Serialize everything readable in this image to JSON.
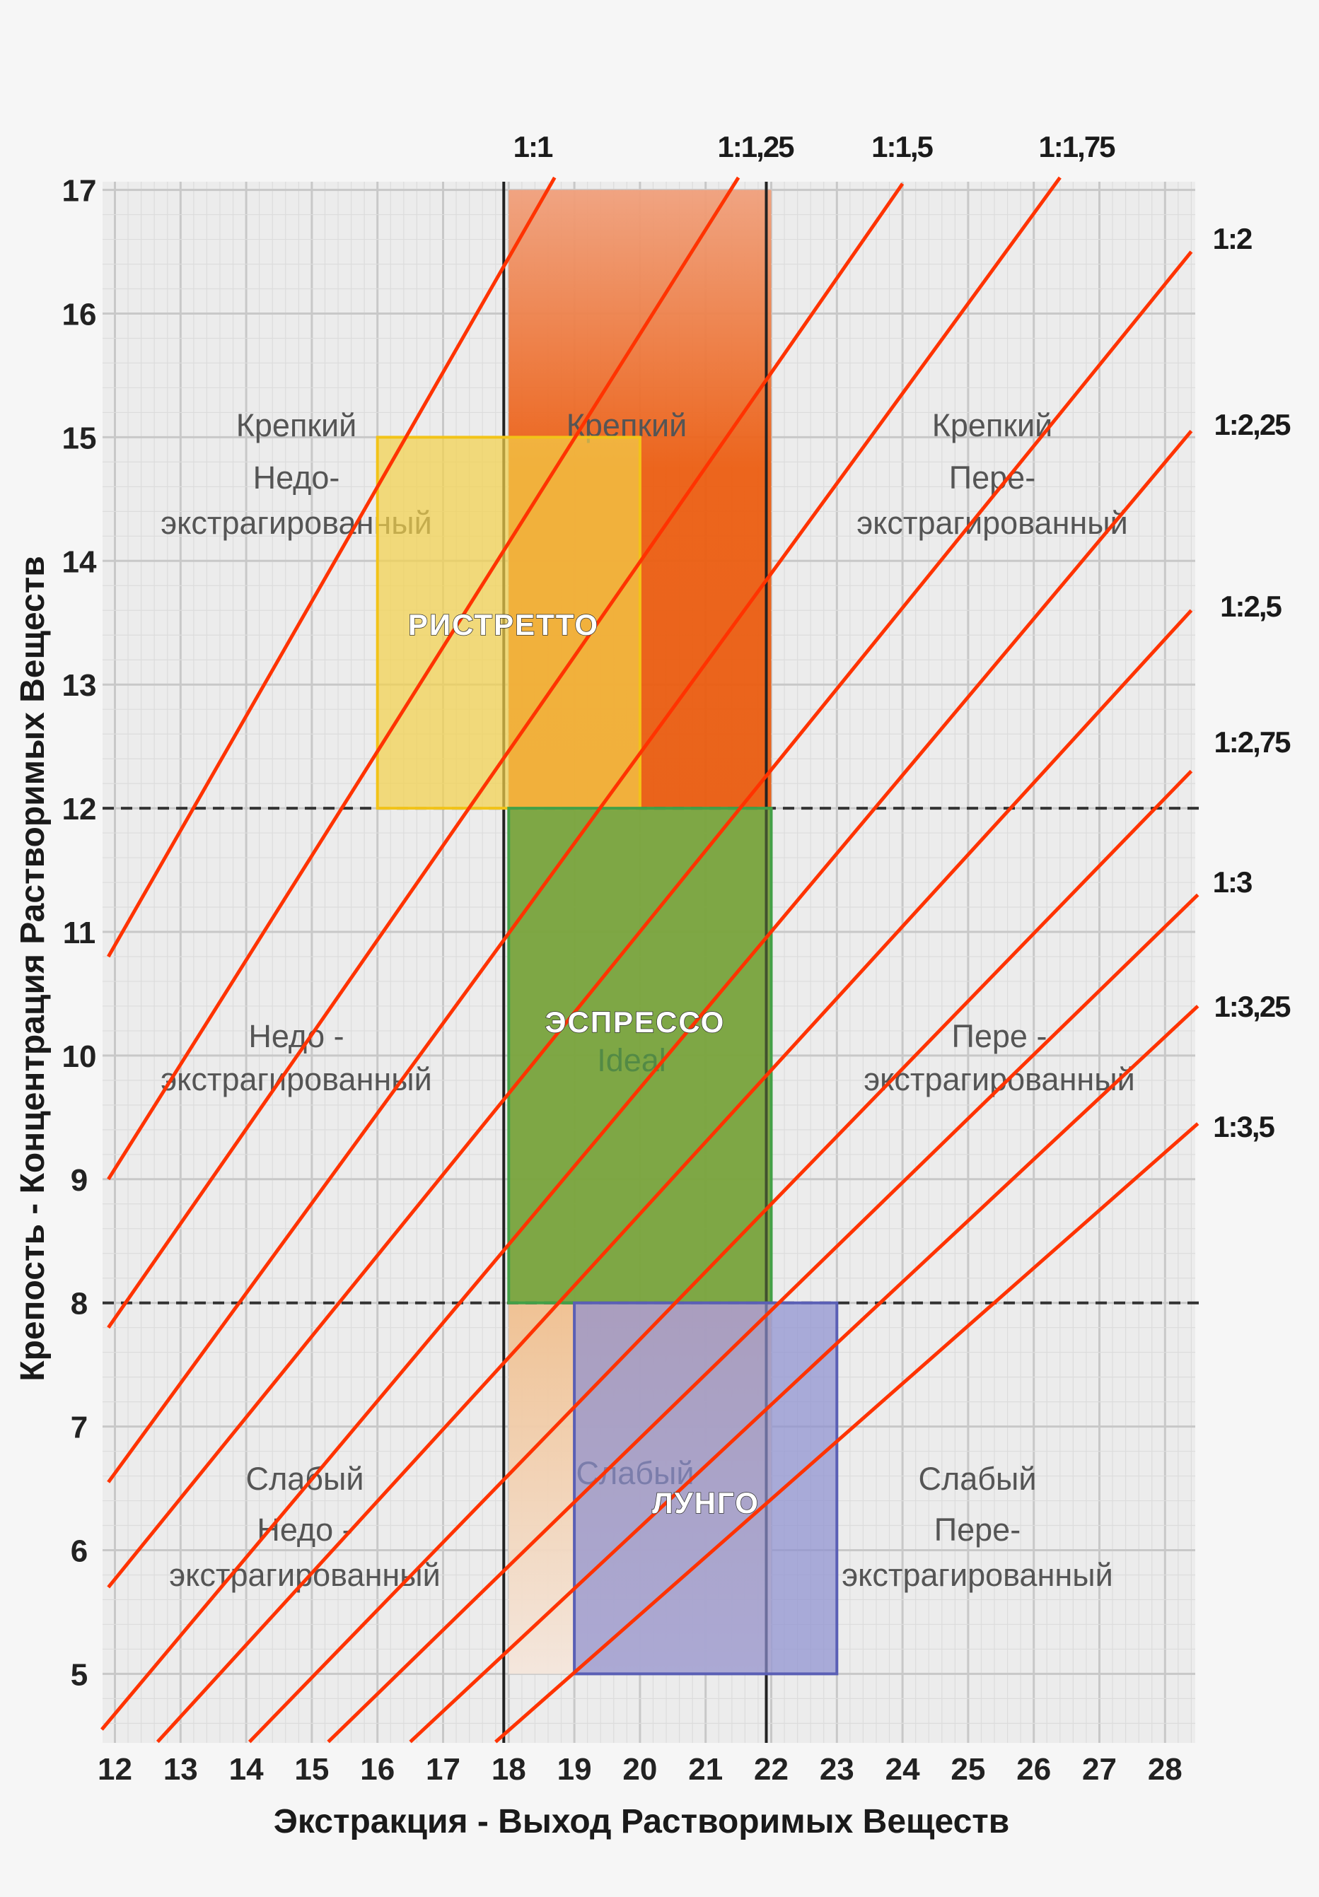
{
  "chart_data": {
    "type": "line",
    "title": "",
    "xlabel": "Экстракция - Выход Растворимых Веществ",
    "ylabel": "Крепость - Концентрация Растворимых Веществ",
    "xlim": [
      12,
      28
    ],
    "ylim": [
      5,
      17
    ],
    "x_ticks": [
      "12",
      "13",
      "14",
      "15",
      "16",
      "17",
      "18",
      "19",
      "20",
      "21",
      "22",
      "23",
      "24",
      "25",
      "26",
      "27",
      "28"
    ],
    "y_ticks": [
      "5",
      "6",
      "7",
      "8",
      "9",
      "10",
      "11",
      "12",
      "13",
      "14",
      "15",
      "16",
      "17"
    ],
    "grid": true,
    "dashed_thresholds_y": [
      8,
      12
    ],
    "strength_boundaries_x": [
      18,
      22
    ],
    "series": [
      {
        "name": "1:1",
        "points": [
          [
            11.9,
            10.8
          ],
          [
            18.7,
            17.1
          ]
        ]
      },
      {
        "name": "1:1,25",
        "points": [
          [
            11.9,
            9.0
          ],
          [
            21.5,
            17.1
          ]
        ]
      },
      {
        "name": "1:1,5",
        "points": [
          [
            11.9,
            7.8
          ],
          [
            24.0,
            17.05
          ]
        ]
      },
      {
        "name": "1:1,75",
        "points": [
          [
            11.9,
            6.55
          ],
          [
            26.4,
            17.1
          ]
        ]
      },
      {
        "name": "1:2",
        "points": [
          [
            11.9,
            5.7
          ],
          [
            28.4,
            16.5
          ]
        ]
      },
      {
        "name": "1:2,25",
        "points": [
          [
            11.8,
            4.55
          ],
          [
            28.4,
            15.05
          ]
        ]
      },
      {
        "name": "1:2,5",
        "points": [
          [
            12.65,
            4.45
          ],
          [
            28.4,
            13.6
          ]
        ]
      },
      {
        "name": "1:2,75",
        "points": [
          [
            14.05,
            4.45
          ],
          [
            28.4,
            12.3
          ]
        ]
      },
      {
        "name": "1:3",
        "points": [
          [
            15.25,
            4.45
          ],
          [
            28.5,
            11.3
          ]
        ]
      },
      {
        "name": "1:3,25",
        "points": [
          [
            16.5,
            4.45
          ],
          [
            28.5,
            10.4
          ]
        ]
      },
      {
        "name": "1:3,5",
        "points": [
          [
            17.8,
            4.45
          ],
          [
            28.5,
            9.45
          ]
        ]
      }
    ],
    "zones": [
      {
        "name": "strong_ideal",
        "x": [
          18,
          22
        ],
        "y": [
          12,
          17
        ],
        "color": "#ec5e12"
      },
      {
        "name": "ideal",
        "x": [
          18,
          22
        ],
        "y": [
          8,
          12
        ],
        "color": "#7aa33c"
      },
      {
        "name": "weak_ideal",
        "x": [
          18,
          22
        ],
        "y": [
          5,
          8
        ],
        "color": "#f0c79a"
      }
    ],
    "drink_boxes": [
      {
        "label": "РИСТРЕТТО",
        "x": [
          16,
          20
        ],
        "y": [
          12,
          15
        ],
        "fill": "#f3d14a",
        "stroke": "#f2c318"
      },
      {
        "label": "ЭСПРЕССО",
        "x": [
          18,
          22
        ],
        "y": [
          8,
          12
        ],
        "fill": "#7aa845",
        "stroke": "#43a047"
      },
      {
        "label": "ЛУНГО",
        "x": [
          19,
          23
        ],
        "y": [
          5,
          8
        ],
        "fill": "#8c8fd0",
        "stroke": "#5a5fb5"
      }
    ],
    "line_color": "#ff3300",
    "region_labels": {
      "top_left": [
        "Крепкий",
        "Недо-",
        "экстрагированный"
      ],
      "top_center": [
        "Крепкий"
      ],
      "top_right": [
        "Крепкий",
        "Пере-",
        "экстрагированный"
      ],
      "mid_left": [
        "Недо -",
        "экстрагированный"
      ],
      "mid_center": [
        "Ideal"
      ],
      "mid_right": [
        "Пере -",
        "экстрагированный"
      ],
      "bottom_left": [
        "Слабый",
        "Недо -",
        "экстрагированный"
      ],
      "bottom_center": [
        "Слабый"
      ],
      "bottom_right": [
        "Слабый",
        "Пере-",
        "экстрагированный"
      ]
    }
  }
}
